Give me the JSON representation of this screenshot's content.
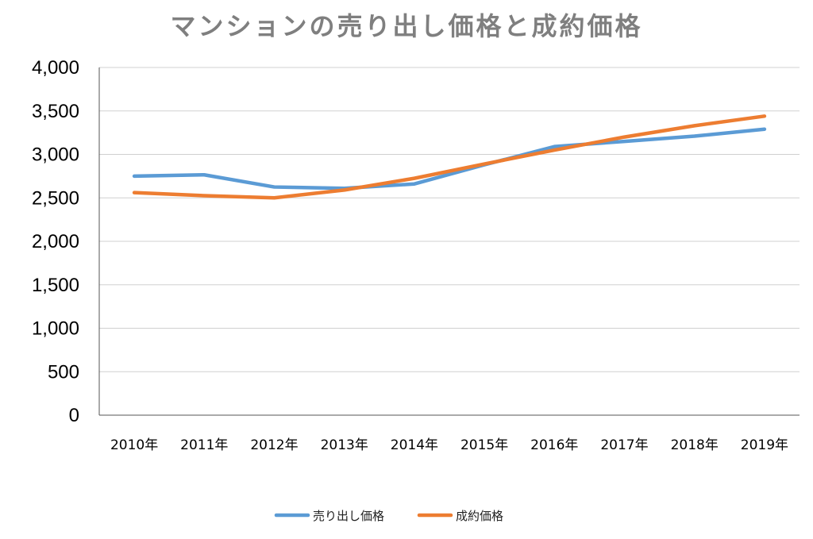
{
  "chart_data": {
    "type": "line",
    "title": "マンションの売り出し価格と成約価格",
    "categories": [
      "2010年",
      "2011年",
      "2012年",
      "2013年",
      "2014年",
      "2015年",
      "2016年",
      "2017年",
      "2018年",
      "2019年"
    ],
    "series": [
      {
        "name": "売り出し価格",
        "color": "#5b9bd5",
        "values": [
          2750,
          2765,
          2625,
          2610,
          2660,
          2880,
          3090,
          3150,
          3210,
          3290
        ]
      },
      {
        "name": "成約価格",
        "color": "#ed7d31",
        "values": [
          2560,
          2525,
          2500,
          2590,
          2725,
          2890,
          3050,
          3200,
          3330,
          3440
        ]
      }
    ],
    "ylim": [
      0,
      4000
    ],
    "yticks": [
      0,
      500,
      1000,
      1500,
      2000,
      2500,
      3000,
      3500,
      4000
    ],
    "ytick_labels": [
      "0",
      "500",
      "1,000",
      "1,500",
      "2,000",
      "2,500",
      "3,000",
      "3,500",
      "4,000"
    ],
    "grid": true,
    "legend_position": "bottom"
  }
}
